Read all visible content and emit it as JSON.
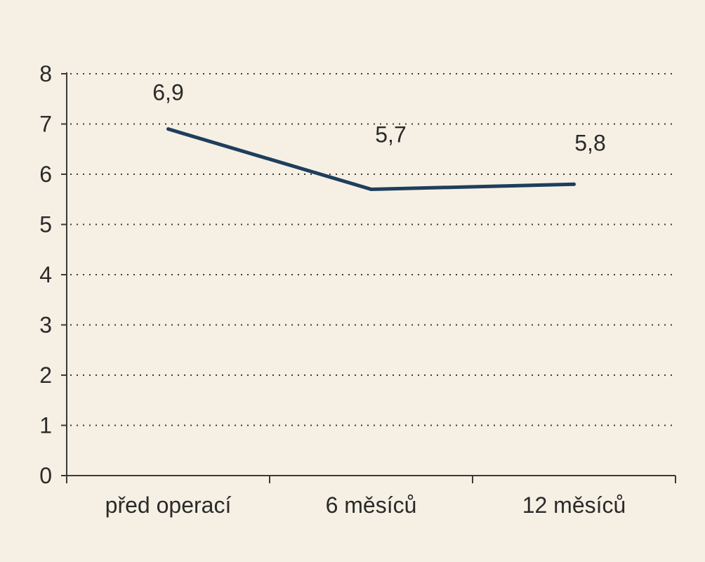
{
  "chart_data": {
    "type": "line",
    "categories": [
      "před operací",
      "6 měsíců",
      "12 měsíců"
    ],
    "series": [
      {
        "values": [
          6.9,
          5.7,
          5.8
        ],
        "data_labels": [
          "6,9",
          "5,7",
          "5,8"
        ],
        "color": "#1e3e5c"
      }
    ],
    "y_ticks": [
      "0",
      "1",
      "2",
      "3",
      "4",
      "5",
      "6",
      "7",
      "8"
    ],
    "ylim": [
      0,
      8
    ],
    "grid": true
  },
  "colors": {
    "background": "#f6f0e4",
    "text": "#2a2a2a",
    "axis": "#3a3a3a"
  }
}
